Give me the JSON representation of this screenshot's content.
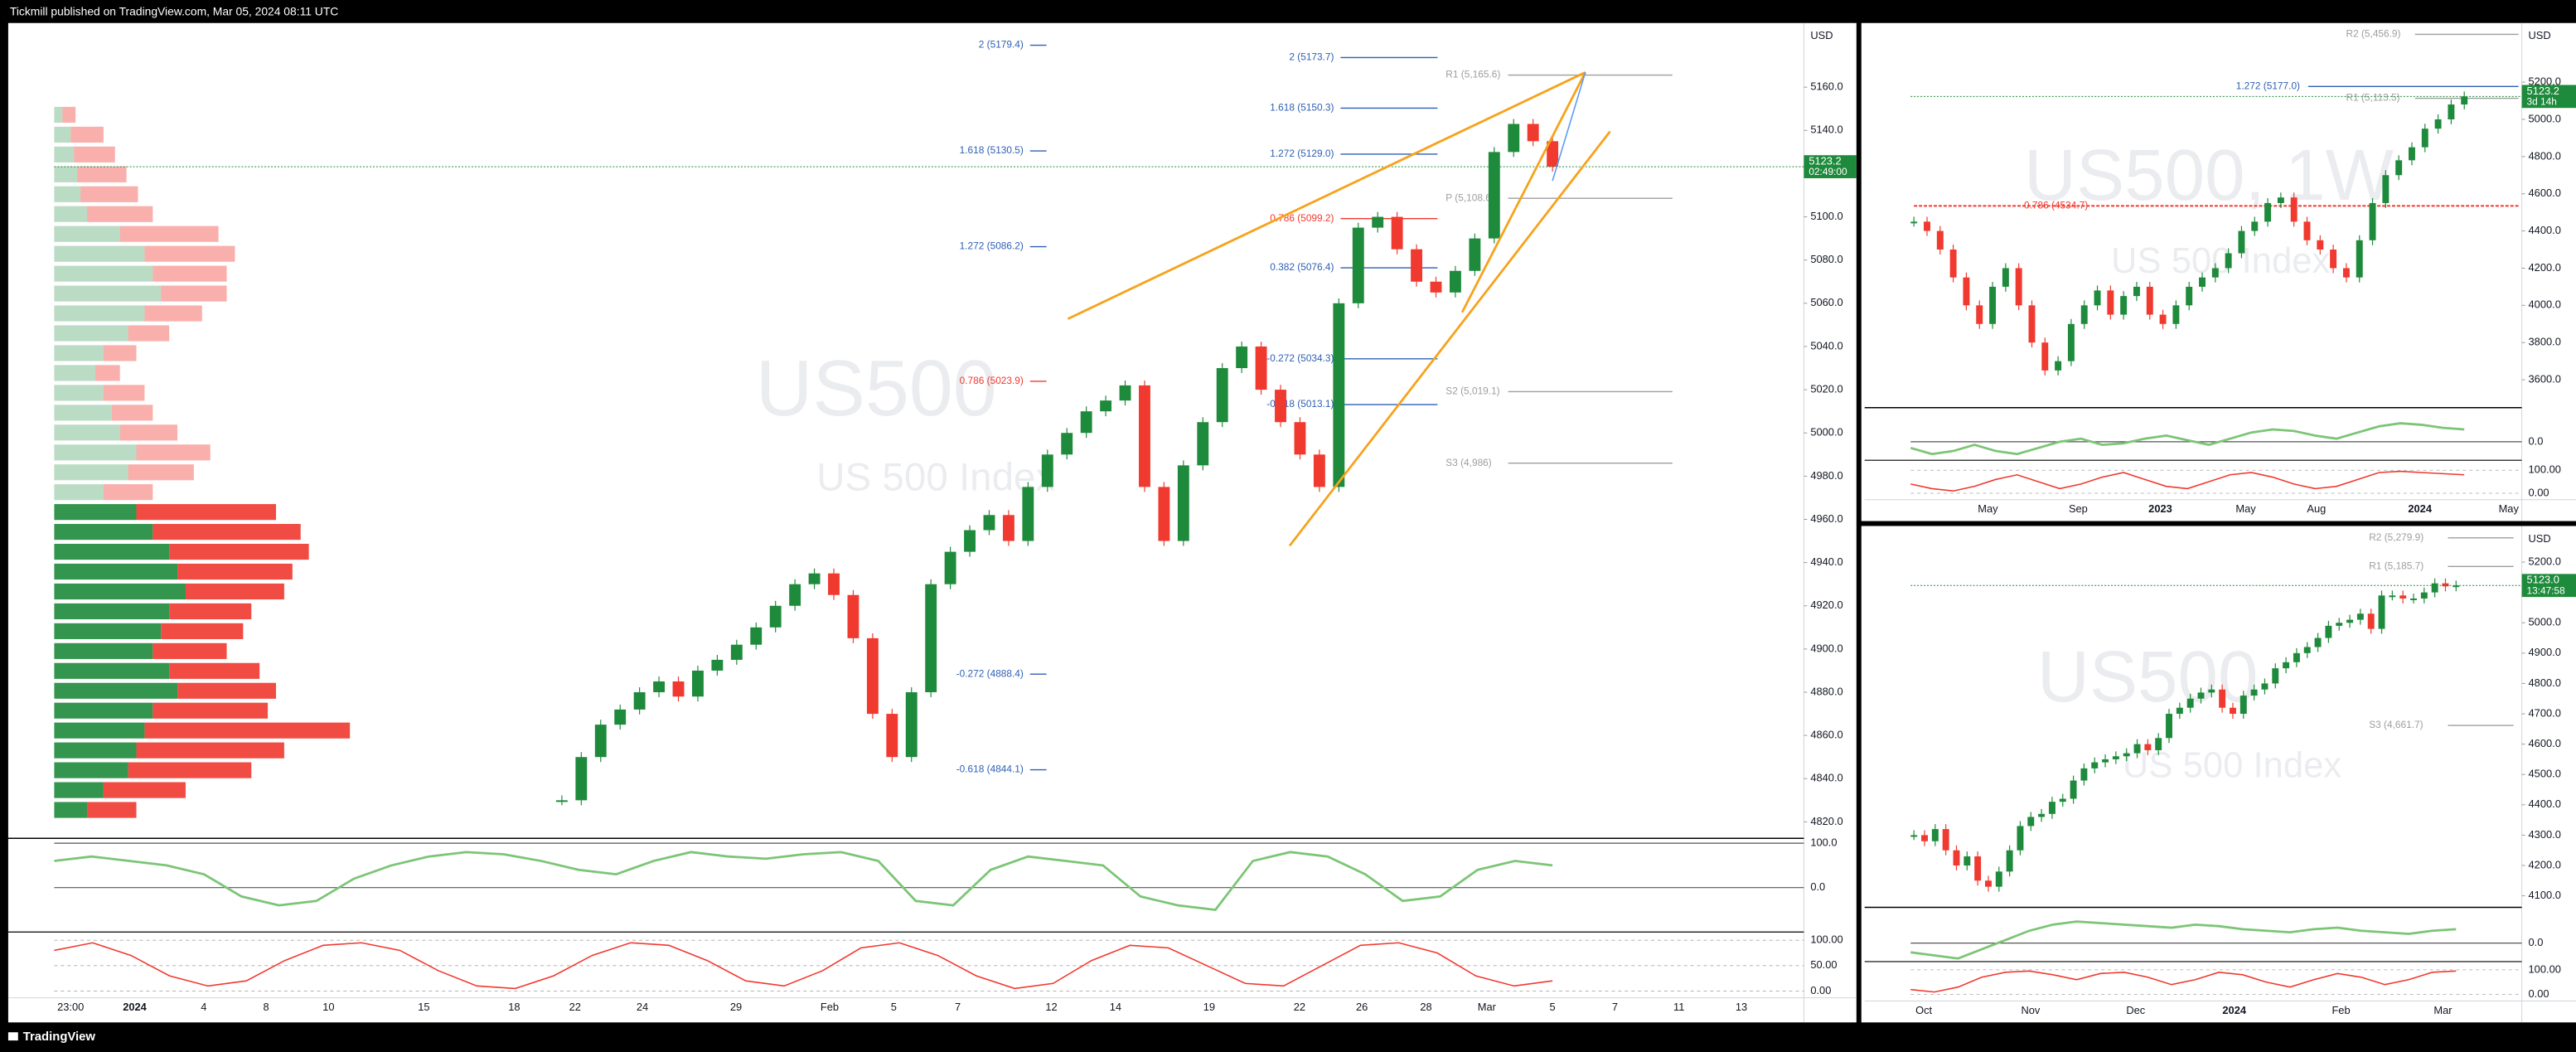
{
  "header": {
    "publisher": "Tickmill published on TradingView.com, Mar 05, 2024 08:11 UTC"
  },
  "footer": {
    "brand": "TradingView"
  },
  "up_color": "#1e8a3b",
  "down_color": "#f0392f",
  "panels": [
    {
      "currency": "USD",
      "watermark": "US500",
      "subtitle": "US 500 Index",
      "ylim": [
        4812.4,
        5189.7
      ],
      "price_ticks": [
        {
          "value": 5160,
          "label": "5160.0"
        },
        {
          "value": 5140,
          "label": "5140.0"
        },
        {
          "value": 5120,
          "label": "5120.0"
        },
        {
          "value": 5100,
          "label": "5100.0"
        },
        {
          "value": 5080,
          "label": "5080.0"
        },
        {
          "value": 5060,
          "label": "5060.0"
        },
        {
          "value": 5040,
          "label": "5040.0"
        },
        {
          "value": 5020,
          "label": "5020.0"
        },
        {
          "value": 5000,
          "label": "5000.0"
        },
        {
          "value": 4980,
          "label": "4980.0"
        },
        {
          "value": 4960,
          "label": "4960.0"
        },
        {
          "value": 4940,
          "label": "4940.0"
        },
        {
          "value": 4920,
          "label": "4920.0"
        },
        {
          "value": 4900,
          "label": "4900.0"
        },
        {
          "value": 4880,
          "label": "4880.0"
        },
        {
          "value": 4860,
          "label": "4860.0"
        },
        {
          "value": 4840,
          "label": "4840.0"
        },
        {
          "value": 4820,
          "label": "4820.0"
        }
      ],
      "price": {
        "value": 5123.2,
        "label": "5123.2"
      },
      "countdown": "02:49:00",
      "time_ticks": [
        "23:00",
        "2024",
        "4",
        "8",
        "10",
        "15",
        "18",
        "22",
        "24",
        "29",
        "Feb",
        "5",
        "7",
        "12",
        "14",
        "19",
        "22",
        "26",
        "28",
        "Mar",
        "5",
        "7",
        "11",
        "13"
      ],
      "closes": [
        4830,
        4850,
        4865,
        4872,
        4880,
        4885,
        4878,
        4890,
        4895,
        4902,
        4910,
        4920,
        4930,
        4935,
        4925,
        4905,
        4870,
        4850,
        4880,
        4930,
        4945,
        4955,
        4962,
        4950,
        4975,
        4990,
        5000,
        5010,
        5015,
        5022,
        4975,
        4950,
        4985,
        5005,
        5030,
        5040,
        5020,
        5005,
        4990,
        4975,
        5060,
        5095,
        5100,
        5085,
        5070,
        5065,
        5075,
        5090,
        5130,
        5143,
        5135,
        5123.2
      ],
      "volume_profile": {
        "buy": [
          5,
          10,
          12,
          14,
          16,
          20,
          40,
          55,
          60,
          65,
          55,
          45,
          30,
          25,
          30,
          35,
          40,
          50,
          45,
          30,
          50,
          60,
          70,
          75,
          80,
          70,
          65,
          60,
          70,
          75,
          60,
          55,
          50,
          45,
          30,
          20
        ],
        "sell": [
          8,
          20,
          25,
          30,
          35,
          40,
          60,
          55,
          45,
          40,
          35,
          25,
          20,
          15,
          25,
          25,
          35,
          45,
          40,
          30,
          85,
          90,
          85,
          70,
          60,
          50,
          50,
          45,
          55,
          60,
          70,
          125,
          90,
          75,
          50,
          30
        ]
      },
      "osc": {
        "ylim": [
          -100,
          111
        ],
        "ticks": [
          {
            "value": 100,
            "label": "100.0"
          },
          {
            "value": 0,
            "label": "0.0"
          }
        ],
        "values": [
          60,
          70,
          60,
          50,
          30,
          -20,
          -40,
          -30,
          20,
          50,
          70,
          80,
          75,
          60,
          40,
          30,
          60,
          80,
          70,
          65,
          75,
          80,
          60,
          -30,
          -40,
          40,
          70,
          60,
          50,
          -20,
          -40,
          -50,
          60,
          80,
          70,
          30,
          -30,
          -20,
          40,
          60,
          50
        ]
      },
      "stoch": {
        "ylim": [
          -10,
          113
        ],
        "ticks": [
          {
            "value": 100,
            "label": "100.00"
          },
          {
            "value": 50,
            "label": "50.00"
          },
          {
            "value": 0,
            "label": "0.00"
          }
        ],
        "values": [
          80,
          95,
          70,
          30,
          10,
          20,
          60,
          90,
          95,
          80,
          40,
          10,
          5,
          30,
          70,
          95,
          90,
          60,
          20,
          10,
          40,
          85,
          95,
          70,
          30,
          5,
          15,
          60,
          90,
          85,
          50,
          15,
          10,
          50,
          90,
          95,
          75,
          30,
          10,
          20
        ]
      },
      "fib_tools": [
        {
          "levels": [
            {
              "label": "2 (5179.4)",
              "value": 5179.4,
              "color": "#2f5fb3"
            },
            {
              "label": "1.618 (5130.5)",
              "value": 5130.5,
              "color": "#2f5fb3"
            },
            {
              "label": "1.272 (5086.2)",
              "value": 5086.2,
              "color": "#2f5fb3"
            },
            {
              "label": "-0.272 (4888.4)",
              "value": 4888.4,
              "color": "#2f5fb3"
            },
            {
              "label": "-0.618 (4844.1)",
              "value": 4844.1,
              "color": "#2f5fb3"
            }
          ]
        },
        {
          "levels": [
            {
              "label": "0.786 (5023.9)",
              "value": 5023.9,
              "color": "#f0392f"
            }
          ]
        },
        {
          "levels": [
            {
              "label": "2 (5173.7)",
              "value": 5173.7,
              "color": "#2f5fb3"
            },
            {
              "label": "1.618 (5150.3)",
              "value": 5150.3,
              "color": "#2f5fb3"
            },
            {
              "label": "1.272 (5129.0)",
              "value": 5129.0,
              "color": "#2f5fb3"
            },
            {
              "label": "0.786 (5099.2)",
              "value": 5099.2,
              "color": "#f0392f"
            },
            {
              "label": "0.382 (5076.4)",
              "value": 5076.4,
              "color": "#2f5fb3"
            },
            {
              "label": "-0.272 (5034.3)",
              "value": 5034.3,
              "color": "#2f5fb3"
            },
            {
              "label": "-0.618 (5013.1)",
              "value": 5013.1,
              "color": "#2f5fb3"
            }
          ]
        },
        {
          "levels": [
            {
              "label": "R1 (5,165.6)",
              "value": 5165.6,
              "color": "#9e9e9e"
            },
            {
              "label": "P (5,108.6)",
              "value": 5108.6,
              "color": "#9e9e9e"
            },
            {
              "label": "S2 (5,019.1)",
              "value": 5019.1,
              "color": "#9e9e9e"
            },
            {
              "label": "S3 (4,986)",
              "value": 4986,
              "color": "#9e9e9e"
            }
          ]
        }
      ]
    },
    {
      "currency": "USD",
      "watermark": "US500, 1W",
      "subtitle": "US 500 Index",
      "ylim": [
        3450,
        5518
      ],
      "price_ticks": [
        {
          "value": 5200,
          "label": "5200.0"
        },
        {
          "value": 5000,
          "label": "5000.0"
        },
        {
          "value": 4800,
          "label": "4800.0"
        },
        {
          "value": 4600,
          "label": "4600.0"
        },
        {
          "value": 4400,
          "label": "4400.0"
        },
        {
          "value": 4200,
          "label": "4200.0"
        },
        {
          "value": 4000,
          "label": "4000.0"
        },
        {
          "value": 3800,
          "label": "3800.0"
        },
        {
          "value": 3600,
          "label": "3600.0"
        }
      ],
      "price": {
        "value": 5123.2,
        "label": "5123.2"
      },
      "countdown": "3d 14h",
      "time_ticks": [
        "May",
        "Sep",
        "2023",
        "May",
        "Aug",
        "2024",
        "May"
      ],
      "closes": [
        4450,
        4400,
        4300,
        4150,
        4000,
        3900,
        4100,
        4200,
        4000,
        3800,
        3650,
        3700,
        3900,
        4000,
        4080,
        3950,
        4050,
        4100,
        3950,
        3900,
        4000,
        4100,
        4150,
        4200,
        4280,
        4400,
        4450,
        4550,
        4580,
        4450,
        4350,
        4300,
        4200,
        4150,
        4350,
        4550,
        4700,
        4780,
        4850,
        4950,
        5000,
        5080,
        5123.2
      ],
      "osc": {
        "ylim": [
          -60,
          100
        ],
        "ticks": [
          {
            "value": 0,
            "label": "0.0"
          }
        ],
        "values": [
          -20,
          -40,
          -30,
          -10,
          -30,
          -40,
          -20,
          0,
          10,
          -10,
          -5,
          10,
          20,
          5,
          -10,
          10,
          30,
          40,
          35,
          20,
          10,
          30,
          50,
          60,
          55,
          45,
          40
        ]
      },
      "stoch": {
        "ylim": [
          -28,
          129
        ],
        "ticks": [
          {
            "value": 100,
            "label": "100.00"
          },
          {
            "value": 0,
            "label": "0.00"
          }
        ],
        "values": [
          40,
          20,
          10,
          30,
          60,
          80,
          50,
          20,
          40,
          70,
          90,
          60,
          30,
          20,
          50,
          80,
          90,
          70,
          40,
          20,
          30,
          60,
          90,
          95,
          90,
          85,
          80
        ]
      },
      "fib_tools": [
        {
          "levels": [
            {
              "label": "1.272 (5177.0)",
              "value": 5177.0,
              "color": "#2f5fb3"
            }
          ]
        },
        {
          "levels": [
            {
              "label": "R2 (5,456.9)",
              "value": 5456.9,
              "color": "#9e9e9e"
            },
            {
              "label": "R1 (5,113.5)",
              "value": 5113.5,
              "color": "#9e9e9e"
            }
          ]
        },
        {
          "levels": [
            {
              "label": "0.786 (4534.7)",
              "value": 4534.7,
              "color": "#f0392f"
            }
          ]
        }
      ]
    },
    {
      "currency": "USD",
      "watermark": "US500",
      "subtitle": "US 500 Index",
      "ylim": [
        4062,
        5319
      ],
      "price_ticks": [
        {
          "value": 5200,
          "label": "5200.0"
        },
        {
          "value": 5100,
          "label": "5100.0"
        },
        {
          "value": 5000,
          "label": "5000.0"
        },
        {
          "value": 4900,
          "label": "4900.0"
        },
        {
          "value": 4800,
          "label": "4800.0"
        },
        {
          "value": 4700,
          "label": "4700.0"
        },
        {
          "value": 4600,
          "label": "4600.0"
        },
        {
          "value": 4500,
          "label": "4500.0"
        },
        {
          "value": 4400,
          "label": "4400.0"
        },
        {
          "value": 4300,
          "label": "4300.0"
        },
        {
          "value": 4200,
          "label": "4200.0"
        },
        {
          "value": 4100,
          "label": "4100.0"
        }
      ],
      "price": {
        "value": 5123.0,
        "label": "5123.0"
      },
      "countdown": "13:47:58",
      "time_ticks": [
        "Oct",
        "Nov",
        "Dec",
        "2024",
        "Feb",
        "Mar"
      ],
      "closes": [
        4300,
        4280,
        4320,
        4250,
        4200,
        4230,
        4150,
        4130,
        4180,
        4250,
        4330,
        4360,
        4370,
        4410,
        4420,
        4480,
        4520,
        4540,
        4550,
        4560,
        4570,
        4600,
        4580,
        4620,
        4700,
        4720,
        4750,
        4770,
        4780,
        4720,
        4700,
        4760,
        4780,
        4800,
        4850,
        4870,
        4900,
        4920,
        4950,
        4990,
        5000,
        5010,
        5030,
        4980,
        5090,
        5090,
        5080,
        5080,
        5100,
        5130,
        5120,
        5123.0
      ],
      "osc": {
        "ylim": [
          -60,
          100
        ],
        "ticks": [
          {
            "value": 0,
            "label": "0.0"
          }
        ],
        "values": [
          -30,
          -40,
          -50,
          -20,
          10,
          40,
          60,
          70,
          65,
          60,
          55,
          50,
          60,
          55,
          45,
          40,
          35,
          45,
          50,
          40,
          35,
          30,
          40,
          45
        ]
      },
      "stoch": {
        "ylim": [
          -20,
          120
        ],
        "ticks": [
          {
            "value": 100,
            "label": "100.00"
          },
          {
            "value": 0,
            "label": "0.00"
          }
        ],
        "values": [
          20,
          10,
          30,
          70,
          90,
          95,
          80,
          60,
          85,
          90,
          70,
          40,
          60,
          90,
          80,
          50,
          30,
          60,
          85,
          70,
          40,
          60,
          90,
          95
        ]
      },
      "fib_tools": [
        {
          "levels": [
            {
              "label": "R2 (5,279.9)",
              "value": 5279.9,
              "color": "#9e9e9e"
            },
            {
              "label": "R1 (5,185.7)",
              "value": 5185.7,
              "color": "#9e9e9e"
            },
            {
              "label": "S3 (4,661.7)",
              "value": 4661.7,
              "color": "#9e9e9e"
            }
          ]
        }
      ]
    }
  ]
}
